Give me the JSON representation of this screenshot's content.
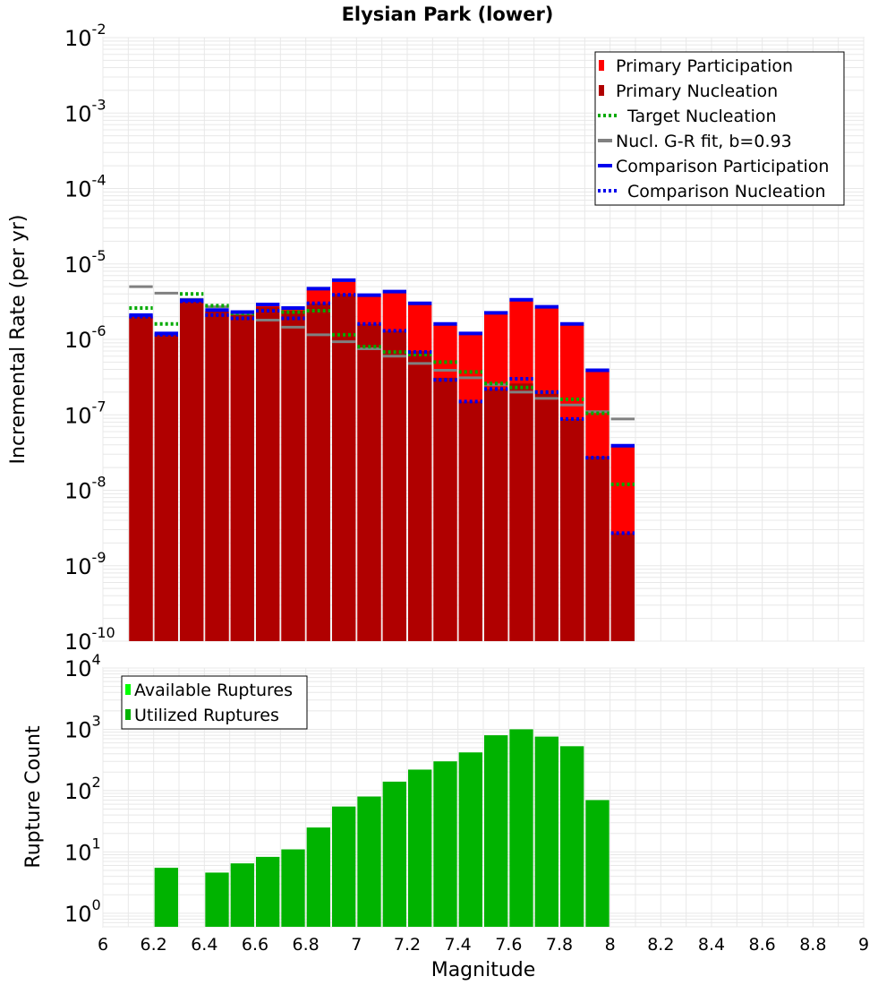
{
  "title": "Elysian Park (lower)",
  "colors": {
    "primary_participation": "#ff0000",
    "primary_nucleation": "#b00000",
    "target_nucleation": "#00aa00",
    "gr_fit": "#808080",
    "comparison": "#0000ee",
    "available_ruptures": "#00ff00",
    "utilized_ruptures": "#00b300",
    "grid": "#e8e8e8"
  },
  "chart_data": [
    {
      "type": "bar",
      "ylabel": "Incremental Rate (per yr)",
      "yscale": "log",
      "ylim": [
        1e-10,
        0.01
      ],
      "ytick_labels": [
        {
          "base": "10",
          "exp": "-10"
        },
        {
          "base": "10",
          "exp": "-9"
        },
        {
          "base": "10",
          "exp": "-8"
        },
        {
          "base": "10",
          "exp": "-7"
        },
        {
          "base": "10",
          "exp": "-6"
        },
        {
          "base": "10",
          "exp": "-5"
        },
        {
          "base": "10",
          "exp": "-4"
        },
        {
          "base": "10",
          "exp": "-3"
        },
        {
          "base": "10",
          "exp": "-2"
        }
      ],
      "grid": true,
      "legend_position": "top-right",
      "legend": [
        {
          "label": "Primary Participation",
          "style": "bar-bright"
        },
        {
          "label": "Primary Nucleation",
          "style": "bar-dark"
        },
        {
          "label": "Target Nucleation",
          "style": "dotted-green"
        },
        {
          "label": "Nucl. G-R fit, b=0.93",
          "style": "solid-gray"
        },
        {
          "label": "Comparison Participation",
          "style": "solid-blue"
        },
        {
          "label": "Comparison Nucleation",
          "style": "dotted-blue"
        }
      ],
      "x": [
        6.15,
        6.25,
        6.35,
        6.45,
        6.55,
        6.65,
        6.75,
        6.85,
        6.95,
        7.05,
        7.15,
        7.25,
        7.35,
        7.45,
        7.55,
        7.65,
        7.75,
        7.85,
        7.95,
        8.05
      ],
      "series": [
        {
          "name": "Primary Participation",
          "values": [
            2e-06,
            1.15e-06,
            3.2e-06,
            2.35e-06,
            2.2e-06,
            2.8e-06,
            2.5e-06,
            4.5e-06,
            5.8e-06,
            3.7e-06,
            4.1e-06,
            2.9e-06,
            1.55e-06,
            1.15e-06,
            2.15e-06,
            3.2e-06,
            2.6e-06,
            1.55e-06,
            3.8e-07,
            3.8e-08
          ]
        },
        {
          "name": "Primary Nucleation",
          "values": [
            2e-06,
            1.15e-06,
            3.2e-06,
            2.35e-06,
            2.2e-06,
            2.7e-06,
            2.4e-06,
            3e-06,
            4e-06,
            1.6e-06,
            1.3e-06,
            7e-07,
            3.1e-07,
            1.5e-07,
            2.2e-07,
            2.6e-07,
            1.9e-07,
            8.8e-08,
            2.8e-08,
            2.7e-09
          ]
        },
        {
          "name": "Target Nucleation",
          "values": [
            2.6e-06,
            1.6e-06,
            4e-06,
            2.8e-06,
            2.2e-06,
            2.4e-06,
            2.3e-06,
            2.4e-06,
            1.15e-06,
            8e-07,
            6.8e-07,
            6.3e-07,
            5e-07,
            3.7e-07,
            2.6e-07,
            2.3e-07,
            2e-07,
            1.6e-07,
            1.05e-07,
            1.2e-08
          ]
        },
        {
          "name": "Nucl. G-R fit, b=0.93",
          "values": [
            5e-06,
            4.1e-06,
            3.4e-06,
            2.7e-06,
            2.2e-06,
            1.8e-06,
            1.45e-06,
            1.15e-06,
            9.3e-07,
            7.5e-07,
            6e-07,
            4.8e-07,
            3.9e-07,
            3.1e-07,
            2.5e-07,
            2e-07,
            1.65e-07,
            1.35e-07,
            1.1e-07,
            8.8e-08
          ]
        },
        {
          "name": "Comparison Participation",
          "values": [
            2.1e-06,
            1.2e-06,
            3.3e-06,
            2.45e-06,
            2.3e-06,
            2.9e-06,
            2.6e-06,
            4.7e-06,
            6.1e-06,
            3.85e-06,
            4.3e-06,
            3e-06,
            1.6e-06,
            1.2e-06,
            2.25e-06,
            3.35e-06,
            2.7e-06,
            1.6e-06,
            3.9e-07,
            3.9e-08
          ]
        },
        {
          "name": "Comparison Nucleation",
          "values": [
            2e-06,
            1.15e-06,
            3.2e-06,
            2.1e-06,
            1.9e-06,
            2.4e-06,
            1.9e-06,
            3e-06,
            3.9e-06,
            1.6e-06,
            1.3e-06,
            6.8e-07,
            2.9e-07,
            1.5e-07,
            2.2e-07,
            3e-07,
            2e-07,
            8.8e-08,
            2.7e-08,
            2.7e-09
          ]
        }
      ]
    },
    {
      "type": "bar",
      "xlabel": "Magnitude",
      "ylabel": "Rupture Count",
      "yscale": "log",
      "ylim": [
        0.6,
        10000
      ],
      "xlim": [
        6,
        9
      ],
      "xtick_labels": [
        "6",
        "6.2",
        "6.4",
        "6.6",
        "6.8",
        "7",
        "7.2",
        "7.4",
        "7.6",
        "7.8",
        "8",
        "8.2",
        "8.4",
        "8.6",
        "8.8",
        "9"
      ],
      "ytick_labels": [
        {
          "base": "10",
          "exp": "0"
        },
        {
          "base": "10",
          "exp": "1"
        },
        {
          "base": "10",
          "exp": "2"
        },
        {
          "base": "10",
          "exp": "3"
        },
        {
          "base": "10",
          "exp": "4"
        }
      ],
      "grid": true,
      "legend_position": "top-left",
      "legend": [
        {
          "label": "Available Ruptures",
          "style": "bar-light-green"
        },
        {
          "label": "Utilized Ruptures",
          "style": "bar-green"
        }
      ],
      "x": [
        6.25,
        6.45,
        6.55,
        6.65,
        6.75,
        6.85,
        6.95,
        7.05,
        7.15,
        7.25,
        7.35,
        7.45,
        7.55,
        7.65,
        7.75,
        7.85,
        7.95
      ],
      "series": [
        {
          "name": "Utilized Ruptures",
          "values": [
            5.5,
            4.6,
            6.5,
            8.3,
            11,
            25,
            55,
            80,
            140,
            220,
            300,
            420,
            800,
            1000,
            760,
            530,
            70
          ]
        }
      ]
    }
  ]
}
